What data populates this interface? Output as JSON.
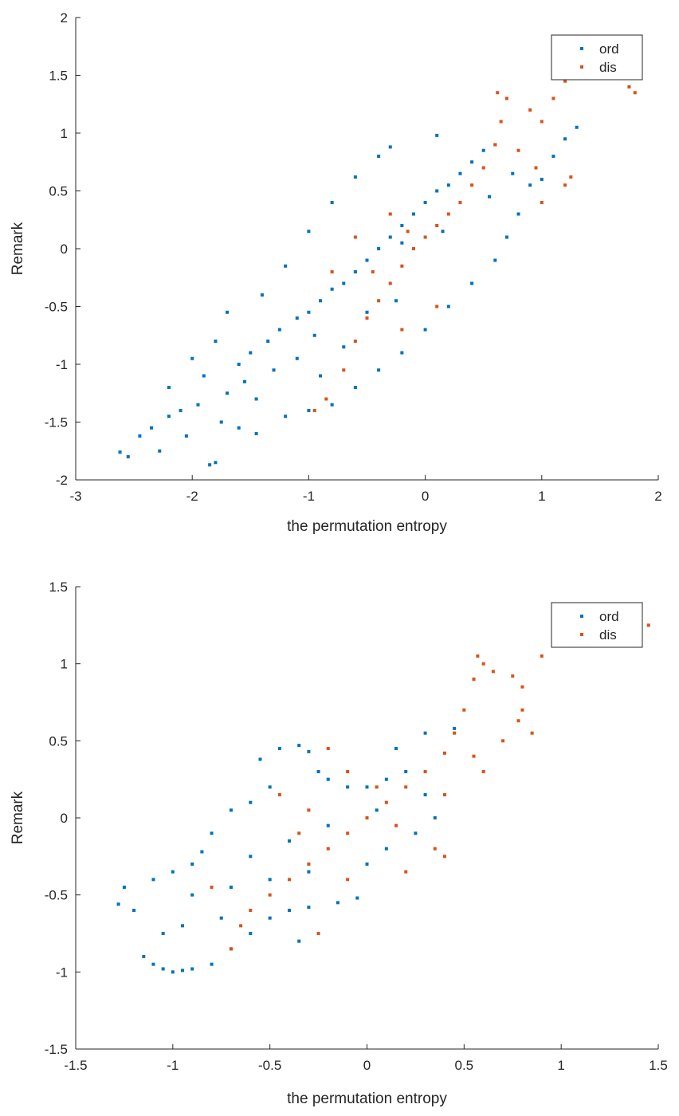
{
  "chart_data": [
    {
      "type": "scatter",
      "xlabel": "the permutation entropy",
      "ylabel": "Remark",
      "xlim": [
        -3,
        2
      ],
      "ylim": [
        -2,
        2
      ],
      "xticks": [
        -3,
        -2,
        -1,
        0,
        1,
        2
      ],
      "yticks": [
        -2,
        -1.5,
        -1,
        -0.5,
        0,
        0.5,
        1,
        1.5,
        2
      ],
      "xtick_labels": [
        "-3",
        "-2",
        "-1",
        "0",
        "1",
        "2"
      ],
      "ytick_labels": [
        "-2",
        "-1.5",
        "-1",
        "-0.5",
        "0",
        "0.5",
        "1",
        "1.5",
        "2"
      ],
      "grid": false,
      "legend_position": "top-right",
      "series": [
        {
          "name": "ord",
          "color": "#0072BD",
          "points": [
            [
              -2.62,
              -1.76
            ],
            [
              -2.55,
              -1.8
            ],
            [
              -2.45,
              -1.62
            ],
            [
              -2.35,
              -1.55
            ],
            [
              -2.28,
              -1.75
            ],
            [
              -2.2,
              -1.45
            ],
            [
              -2.05,
              -1.62
            ],
            [
              -1.85,
              -1.87
            ],
            [
              -1.8,
              -1.85
            ],
            [
              -1.75,
              -1.5
            ],
            [
              -1.6,
              -1.55
            ],
            [
              -1.45,
              -1.6
            ],
            [
              -1.95,
              -1.35
            ],
            [
              -2.1,
              -1.4
            ],
            [
              -1.7,
              -1.25
            ],
            [
              -1.9,
              -1.1
            ],
            [
              -1.6,
              -1.0
            ],
            [
              -1.5,
              -0.9
            ],
            [
              -1.35,
              -0.8
            ],
            [
              -1.25,
              -0.7
            ],
            [
              -1.1,
              -0.6
            ],
            [
              -1.0,
              -0.55
            ],
            [
              -0.9,
              -0.45
            ],
            [
              -0.8,
              -0.35
            ],
            [
              -0.7,
              -0.3
            ],
            [
              -0.6,
              -0.2
            ],
            [
              -0.5,
              -0.1
            ],
            [
              -0.4,
              0.0
            ],
            [
              -0.3,
              0.1
            ],
            [
              -0.2,
              0.2
            ],
            [
              -0.1,
              0.3
            ],
            [
              0.0,
              0.4
            ],
            [
              0.1,
              0.5
            ],
            [
              0.2,
              0.55
            ],
            [
              0.3,
              0.65
            ],
            [
              0.4,
              0.75
            ],
            [
              0.5,
              0.85
            ],
            [
              0.6,
              0.9
            ],
            [
              0.75,
              0.65
            ],
            [
              0.9,
              0.55
            ],
            [
              1.0,
              0.6
            ],
            [
              1.1,
              0.8
            ],
            [
              1.2,
              0.95
            ],
            [
              1.3,
              1.05
            ],
            [
              0.1,
              0.98
            ],
            [
              -0.3,
              0.88
            ],
            [
              -0.4,
              0.8
            ],
            [
              -0.6,
              0.62
            ],
            [
              -0.8,
              0.4
            ],
            [
              -1.0,
              0.15
            ],
            [
              -1.2,
              -0.15
            ],
            [
              -1.4,
              -0.4
            ],
            [
              -1.7,
              -0.55
            ],
            [
              -1.8,
              -0.8
            ],
            [
              -2.0,
              -0.95
            ],
            [
              -2.2,
              -1.2
            ],
            [
              -1.45,
              -1.3
            ],
            [
              -1.2,
              -1.45
            ],
            [
              -1.0,
              -1.4
            ],
            [
              -0.8,
              -1.35
            ],
            [
              -0.6,
              -1.2
            ],
            [
              -0.4,
              -1.05
            ],
            [
              -0.2,
              -0.9
            ],
            [
              0.0,
              -0.7
            ],
            [
              0.2,
              -0.5
            ],
            [
              0.4,
              -0.3
            ],
            [
              0.6,
              -0.1
            ],
            [
              0.7,
              0.1
            ],
            [
              0.8,
              0.3
            ],
            [
              0.55,
              0.45
            ],
            [
              -1.1,
              -0.95
            ],
            [
              -0.95,
              -0.75
            ],
            [
              -0.7,
              -0.85
            ],
            [
              -0.5,
              -0.55
            ],
            [
              -0.25,
              -0.45
            ],
            [
              -0.9,
              -1.1
            ],
            [
              -1.3,
              -1.05
            ],
            [
              -1.55,
              -1.15
            ],
            [
              -0.2,
              0.05
            ],
            [
              0.15,
              0.15
            ]
          ]
        },
        {
          "name": "dis",
          "color": "#D95319",
          "points": [
            [
              -0.95,
              -1.4
            ],
            [
              -0.85,
              -1.3
            ],
            [
              -0.7,
              -1.05
            ],
            [
              -0.6,
              -0.8
            ],
            [
              -0.5,
              -0.6
            ],
            [
              -0.4,
              -0.45
            ],
            [
              -0.3,
              -0.3
            ],
            [
              -0.2,
              -0.15
            ],
            [
              -0.1,
              0.0
            ],
            [
              0.0,
              0.1
            ],
            [
              0.1,
              0.2
            ],
            [
              0.2,
              0.3
            ],
            [
              0.3,
              0.4
            ],
            [
              0.4,
              0.55
            ],
            [
              0.5,
              0.7
            ],
            [
              0.6,
              0.9
            ],
            [
              0.65,
              1.1
            ],
            [
              0.7,
              1.3
            ],
            [
              0.62,
              1.35
            ],
            [
              0.9,
              1.2
            ],
            [
              1.0,
              1.1
            ],
            [
              1.1,
              1.3
            ],
            [
              1.2,
              1.45
            ],
            [
              1.4,
              1.5
            ],
            [
              1.6,
              1.55
            ],
            [
              1.75,
              1.4
            ],
            [
              1.8,
              1.35
            ],
            [
              1.85,
              1.62
            ],
            [
              1.25,
              0.62
            ],
            [
              1.2,
              0.55
            ],
            [
              0.95,
              0.7
            ],
            [
              0.8,
              0.85
            ],
            [
              1.0,
              0.4
            ],
            [
              -0.3,
              0.3
            ],
            [
              -0.6,
              0.1
            ],
            [
              -0.8,
              -0.2
            ],
            [
              -0.2,
              -0.7
            ],
            [
              0.1,
              -0.5
            ],
            [
              -0.45,
              -0.2
            ],
            [
              -0.15,
              0.15
            ]
          ]
        }
      ]
    },
    {
      "type": "scatter",
      "xlabel": "the permutation entropy",
      "ylabel": "Remark",
      "xlim": [
        -1.5,
        1.5
      ],
      "ylim": [
        -1.5,
        1.5
      ],
      "xticks": [
        -1.5,
        -1,
        -0.5,
        0,
        0.5,
        1,
        1.5
      ],
      "yticks": [
        -1.5,
        -1,
        -0.5,
        0,
        0.5,
        1,
        1.5
      ],
      "xtick_labels": [
        "-1.5",
        "-1",
        "-0.5",
        "0",
        "0.5",
        "1",
        "1.5"
      ],
      "ytick_labels": [
        "-1.5",
        "-1",
        "-0.5",
        "0",
        "0.5",
        "1",
        "1.5"
      ],
      "grid": false,
      "legend_position": "top-right",
      "series": [
        {
          "name": "ord",
          "color": "#0072BD",
          "points": [
            [
              -1.28,
              -0.56
            ],
            [
              -1.25,
              -0.45
            ],
            [
              -1.2,
              -0.6
            ],
            [
              -1.15,
              -0.9
            ],
            [
              -1.1,
              -0.95
            ],
            [
              -1.05,
              -0.98
            ],
            [
              -1.0,
              -1.0
            ],
            [
              -0.95,
              -0.99
            ],
            [
              -0.9,
              -0.98
            ],
            [
              -0.8,
              -0.95
            ],
            [
              -0.7,
              -0.85
            ],
            [
              -0.6,
              -0.75
            ],
            [
              -0.5,
              -0.65
            ],
            [
              -0.4,
              -0.6
            ],
            [
              -0.3,
              -0.58
            ],
            [
              -0.15,
              -0.55
            ],
            [
              -0.05,
              -0.52
            ],
            [
              -1.1,
              -0.4
            ],
            [
              -1.0,
              -0.35
            ],
            [
              -0.9,
              -0.3
            ],
            [
              -0.85,
              -0.22
            ],
            [
              -0.8,
              -0.1
            ],
            [
              -0.7,
              0.05
            ],
            [
              -0.6,
              0.1
            ],
            [
              -0.5,
              0.2
            ],
            [
              -0.55,
              0.38
            ],
            [
              -0.45,
              0.45
            ],
            [
              -0.35,
              0.47
            ],
            [
              -0.3,
              0.43
            ],
            [
              -0.25,
              0.3
            ],
            [
              -0.2,
              0.25
            ],
            [
              -0.1,
              0.2
            ],
            [
              0.0,
              0.2
            ],
            [
              0.1,
              0.25
            ],
            [
              0.2,
              0.3
            ],
            [
              0.3,
              0.15
            ],
            [
              0.35,
              0.0
            ],
            [
              0.25,
              -0.1
            ],
            [
              0.1,
              -0.2
            ],
            [
              0.0,
              -0.3
            ],
            [
              -0.3,
              -0.35
            ],
            [
              -0.5,
              -0.4
            ],
            [
              -0.7,
              -0.45
            ],
            [
              -0.9,
              -0.5
            ],
            [
              -0.6,
              -0.25
            ],
            [
              -0.4,
              -0.15
            ],
            [
              -0.2,
              -0.05
            ],
            [
              0.05,
              0.05
            ],
            [
              -0.75,
              -0.65
            ],
            [
              -0.95,
              -0.7
            ],
            [
              -1.05,
              -0.75
            ],
            [
              -0.35,
              -0.8
            ],
            [
              0.15,
              0.45
            ],
            [
              0.3,
              0.55
            ],
            [
              0.45,
              0.58
            ]
          ]
        },
        {
          "name": "dis",
          "color": "#D95319",
          "points": [
            [
              -0.7,
              -0.85
            ],
            [
              -0.65,
              -0.7
            ],
            [
              -0.6,
              -0.6
            ],
            [
              -0.5,
              -0.5
            ],
            [
              -0.4,
              -0.4
            ],
            [
              -0.3,
              -0.3
            ],
            [
              -0.2,
              -0.2
            ],
            [
              -0.1,
              -0.1
            ],
            [
              0.0,
              0.0
            ],
            [
              0.1,
              0.1
            ],
            [
              0.2,
              0.2
            ],
            [
              0.3,
              0.3
            ],
            [
              0.4,
              0.42
            ],
            [
              0.45,
              0.55
            ],
            [
              0.5,
              0.7
            ],
            [
              0.55,
              0.9
            ],
            [
              0.57,
              1.05
            ],
            [
              0.6,
              1.0
            ],
            [
              0.65,
              0.95
            ],
            [
              0.75,
              0.92
            ],
            [
              0.8,
              0.85
            ],
            [
              0.8,
              0.7
            ],
            [
              0.78,
              0.63
            ],
            [
              0.85,
              0.55
            ],
            [
              0.7,
              0.5
            ],
            [
              0.55,
              0.4
            ],
            [
              0.6,
              0.3
            ],
            [
              0.4,
              0.15
            ],
            [
              0.35,
              -0.2
            ],
            [
              0.4,
              -0.25
            ],
            [
              0.2,
              -0.35
            ],
            [
              -0.1,
              -0.4
            ],
            [
              -0.3,
              0.05
            ],
            [
              -0.45,
              0.15
            ],
            [
              -0.2,
              0.45
            ],
            [
              -0.1,
              0.3
            ],
            [
              0.05,
              0.2
            ],
            [
              -0.35,
              -0.1
            ],
            [
              0.9,
              1.05
            ],
            [
              1.1,
              1.15
            ],
            [
              1.3,
              1.2
            ],
            [
              1.45,
              1.25
            ],
            [
              -0.8,
              -0.45
            ],
            [
              -0.25,
              -0.75
            ],
            [
              0.15,
              -0.05
            ]
          ]
        }
      ]
    }
  ]
}
